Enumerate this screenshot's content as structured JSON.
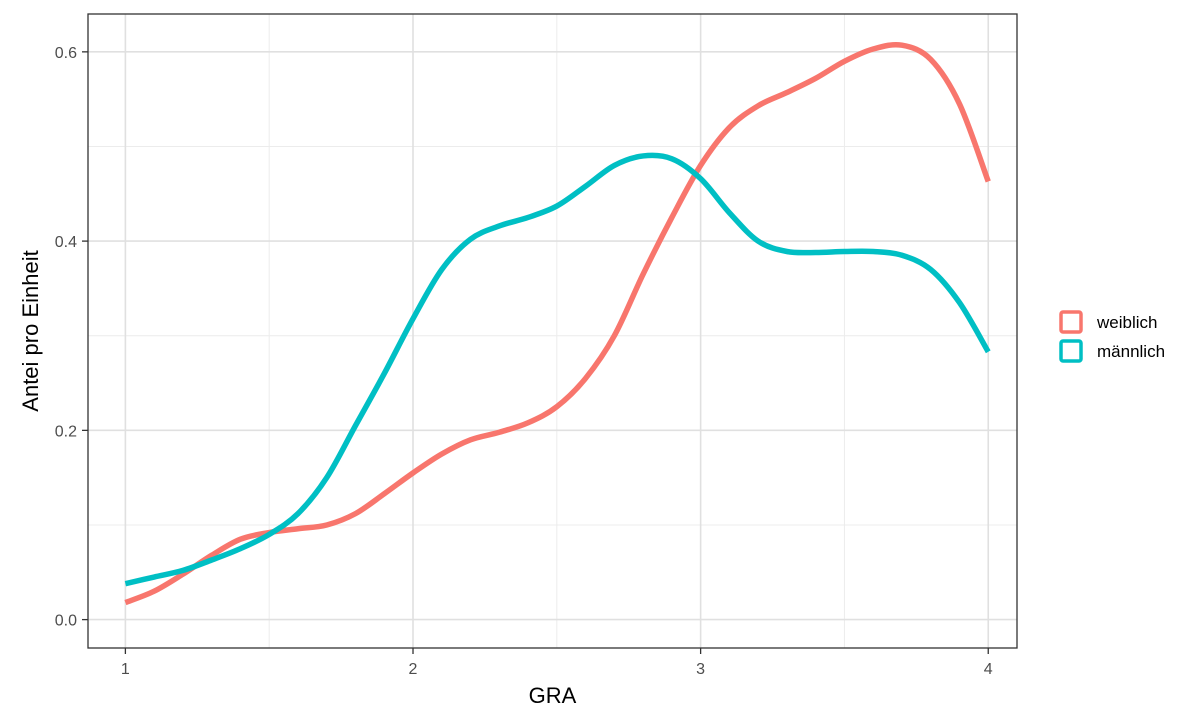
{
  "chart_data": {
    "type": "line",
    "title": "",
    "xlabel": "GRA",
    "ylabel": "Antei pro Einheit",
    "xlim": [
      0.87,
      4.1
    ],
    "ylim": [
      -0.03,
      0.64
    ],
    "x_ticks": [
      1,
      2,
      3,
      4
    ],
    "x_tick_labels": [
      "1",
      "2",
      "3",
      "4"
    ],
    "y_ticks": [
      0.0,
      0.2,
      0.4,
      0.6
    ],
    "y_tick_labels": [
      "0.0",
      "0.2",
      "0.4",
      "0.6"
    ],
    "grid": true,
    "legend_position": "right",
    "series": [
      {
        "name": "weiblich",
        "color": "#F8766D",
        "points": [
          [
            1.0,
            0.018
          ],
          [
            1.1,
            0.03
          ],
          [
            1.2,
            0.048
          ],
          [
            1.3,
            0.068
          ],
          [
            1.4,
            0.085
          ],
          [
            1.5,
            0.092
          ],
          [
            1.6,
            0.096
          ],
          [
            1.7,
            0.1
          ],
          [
            1.8,
            0.112
          ],
          [
            1.9,
            0.133
          ],
          [
            2.0,
            0.155
          ],
          [
            2.1,
            0.175
          ],
          [
            2.2,
            0.19
          ],
          [
            2.3,
            0.198
          ],
          [
            2.4,
            0.208
          ],
          [
            2.5,
            0.225
          ],
          [
            2.6,
            0.255
          ],
          [
            2.7,
            0.3
          ],
          [
            2.8,
            0.365
          ],
          [
            2.9,
            0.425
          ],
          [
            3.0,
            0.48
          ],
          [
            3.1,
            0.52
          ],
          [
            3.2,
            0.543
          ],
          [
            3.3,
            0.557
          ],
          [
            3.4,
            0.572
          ],
          [
            3.5,
            0.59
          ],
          [
            3.6,
            0.603
          ],
          [
            3.7,
            0.607
          ],
          [
            3.8,
            0.592
          ],
          [
            3.9,
            0.545
          ],
          [
            4.0,
            0.463
          ]
        ]
      },
      {
        "name": "männlich",
        "color": "#00BFC4",
        "points": [
          [
            1.0,
            0.038
          ],
          [
            1.1,
            0.045
          ],
          [
            1.2,
            0.052
          ],
          [
            1.3,
            0.063
          ],
          [
            1.4,
            0.075
          ],
          [
            1.5,
            0.09
          ],
          [
            1.6,
            0.112
          ],
          [
            1.7,
            0.15
          ],
          [
            1.8,
            0.205
          ],
          [
            1.9,
            0.26
          ],
          [
            2.0,
            0.318
          ],
          [
            2.1,
            0.37
          ],
          [
            2.2,
            0.402
          ],
          [
            2.3,
            0.416
          ],
          [
            2.4,
            0.425
          ],
          [
            2.5,
            0.437
          ],
          [
            2.6,
            0.458
          ],
          [
            2.7,
            0.48
          ],
          [
            2.8,
            0.49
          ],
          [
            2.9,
            0.487
          ],
          [
            3.0,
            0.466
          ],
          [
            3.1,
            0.43
          ],
          [
            3.2,
            0.4
          ],
          [
            3.3,
            0.389
          ],
          [
            3.4,
            0.388
          ],
          [
            3.5,
            0.389
          ],
          [
            3.6,
            0.389
          ],
          [
            3.7,
            0.385
          ],
          [
            3.8,
            0.37
          ],
          [
            3.9,
            0.335
          ],
          [
            4.0,
            0.283
          ]
        ]
      }
    ]
  }
}
